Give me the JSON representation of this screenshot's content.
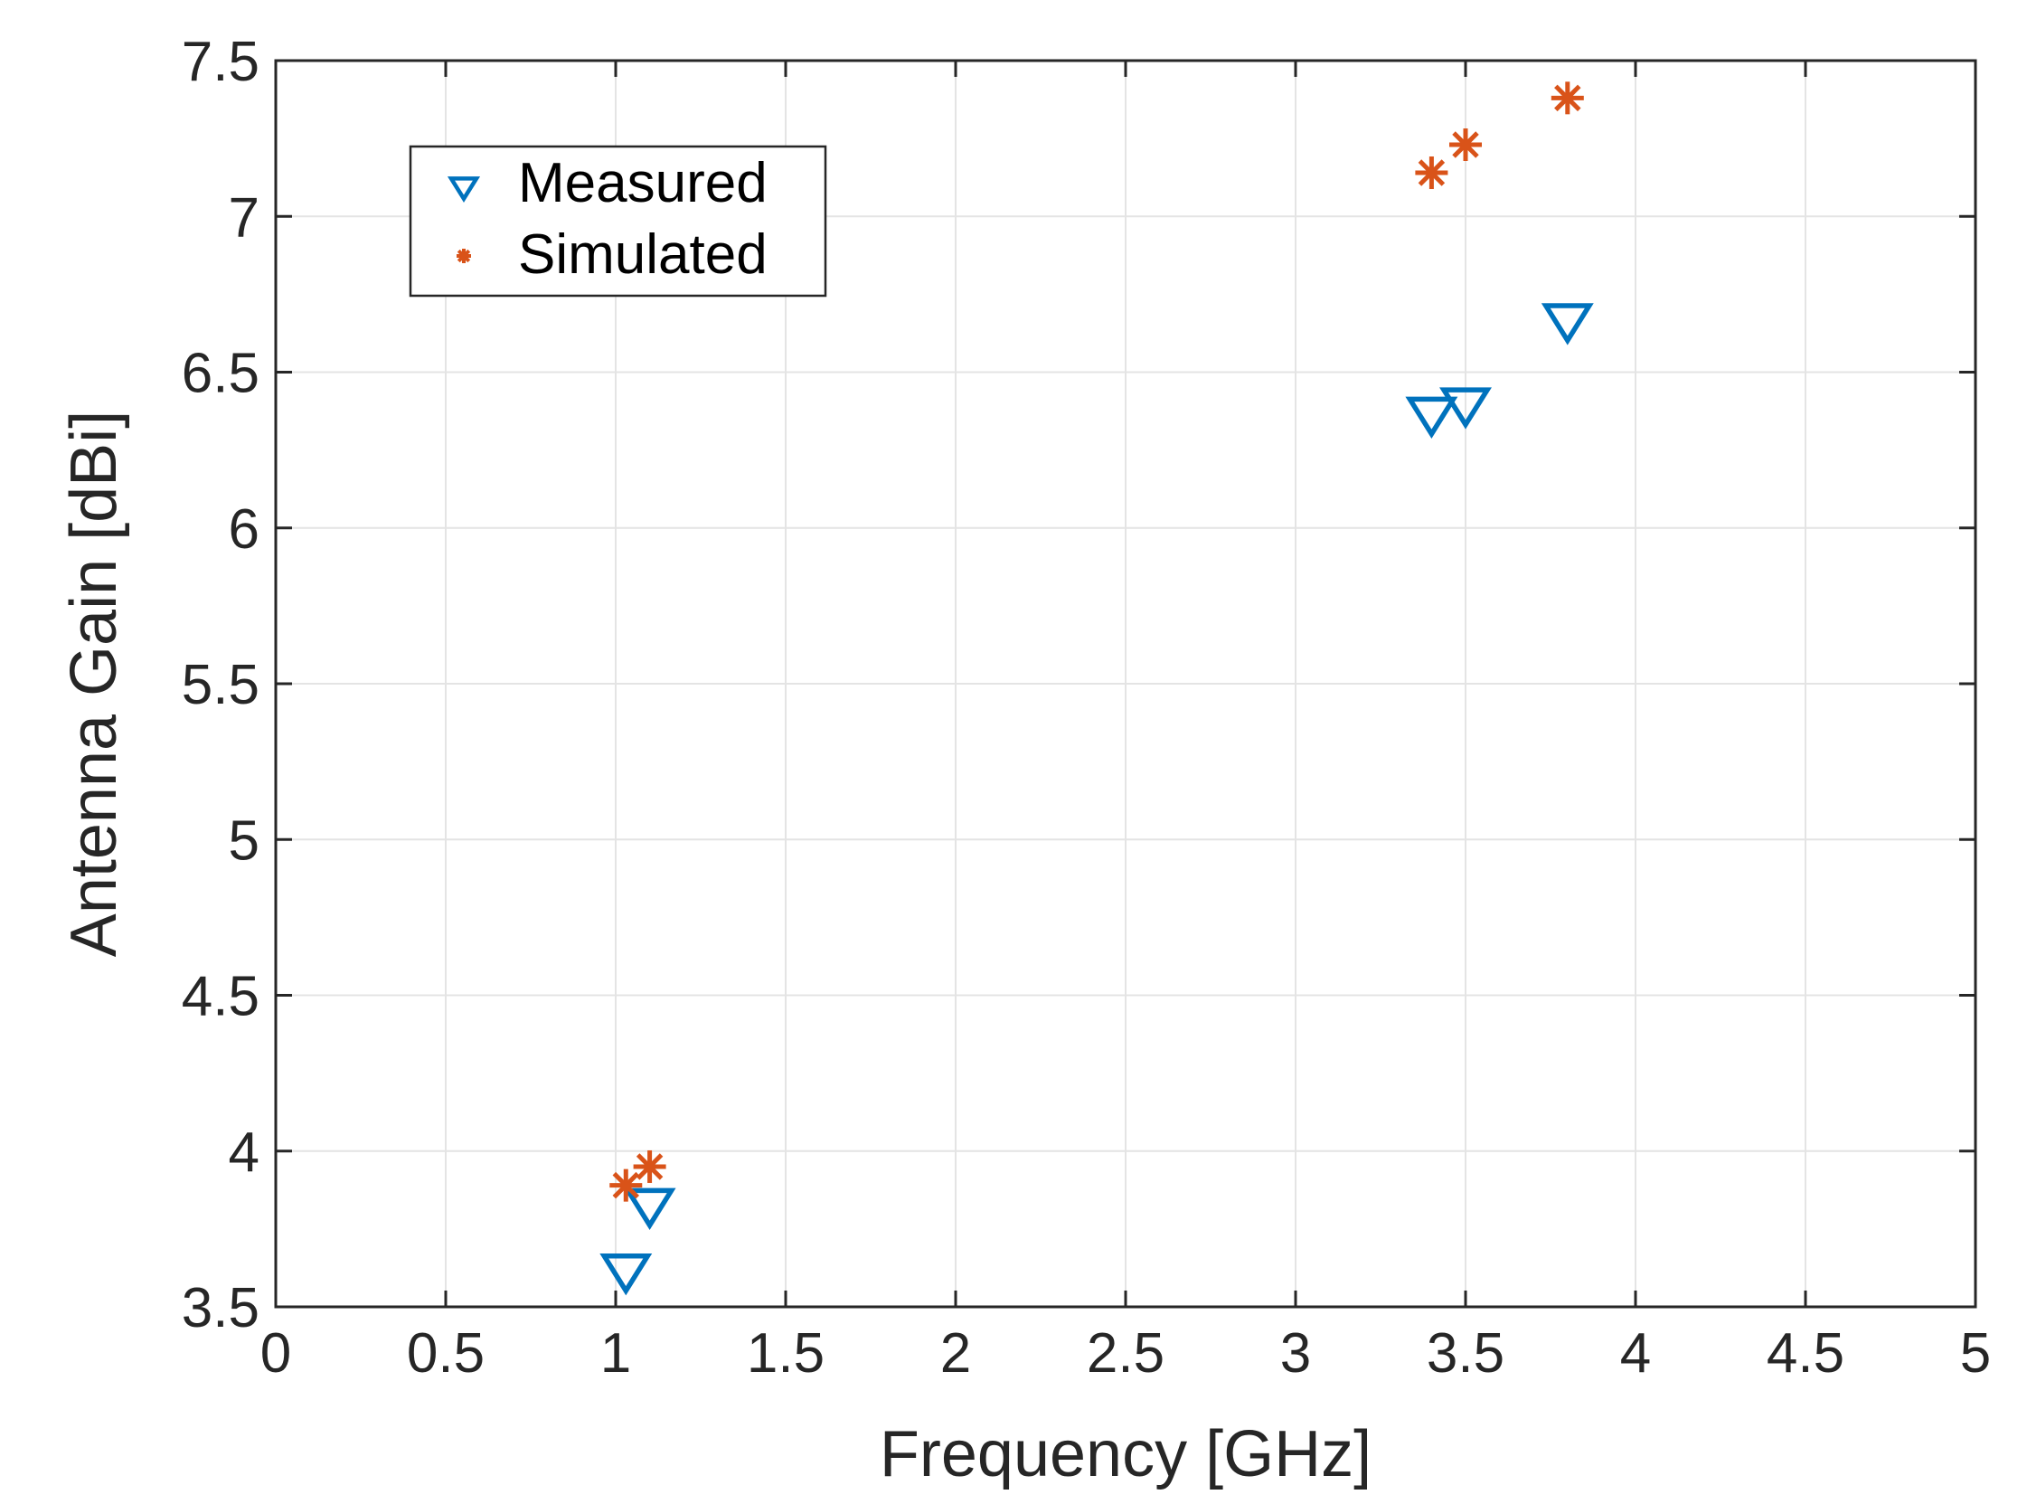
{
  "chart_data": {
    "type": "scatter",
    "title": "",
    "xlabel": "Frequency [GHz]",
    "ylabel": "Antenna Gain [dBi]",
    "xlim": [
      0,
      5
    ],
    "ylim": [
      3.5,
      7.5
    ],
    "xticks": [
      0,
      0.5,
      1,
      1.5,
      2,
      2.5,
      3,
      3.5,
      4,
      4.5,
      5
    ],
    "yticks": [
      3.5,
      4,
      4.5,
      5,
      5.5,
      6,
      6.5,
      7,
      7.5
    ],
    "xtick_labels": [
      "0",
      "0.5",
      "1",
      "1.5",
      "2",
      "2.5",
      "3",
      "3.5",
      "4",
      "4.5",
      "5"
    ],
    "ytick_labels": [
      "3.5",
      "4",
      "4.5",
      "5",
      "5.5",
      "6",
      "6.5",
      "7",
      "7.5"
    ],
    "grid": true,
    "legend_position": "top-left",
    "series": [
      {
        "name": "Measured",
        "marker": "triangle-down",
        "color": "#0072BD",
        "x": [
          1.03,
          1.1,
          3.4,
          3.5,
          3.8
        ],
        "y": [
          3.62,
          3.83,
          6.37,
          6.4,
          6.67
        ]
      },
      {
        "name": "Simulated",
        "marker": "asterisk",
        "color": "#D95319",
        "x": [
          1.03,
          1.1,
          3.4,
          3.5,
          3.8
        ],
        "y": [
          3.89,
          3.95,
          7.14,
          7.23,
          7.38
        ]
      }
    ]
  }
}
